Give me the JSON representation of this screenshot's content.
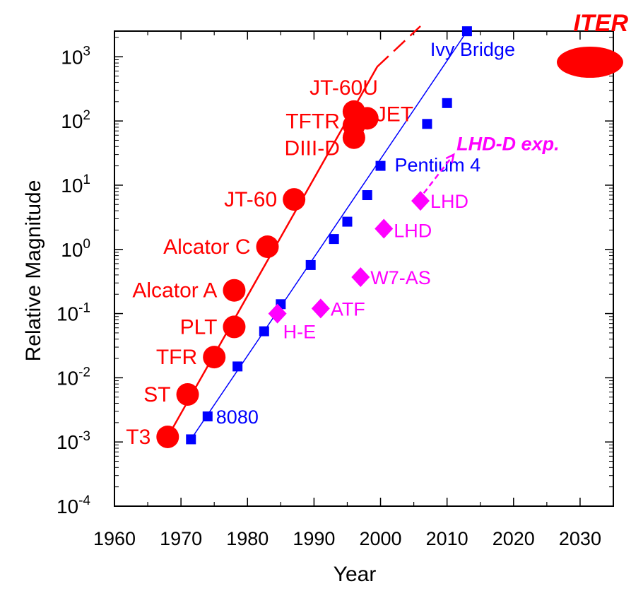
{
  "chart_data": {
    "type": "scatter",
    "xlabel": "Year",
    "ylabel": "Relative Magnitude",
    "xlim": [
      1960,
      2035
    ],
    "ylim_log10": [
      -4,
      3.4
    ],
    "y_scale": "log",
    "x_ticks": [
      "1960",
      "1970",
      "1980",
      "1990",
      "2000",
      "2010",
      "2020",
      "2030"
    ],
    "y_ticks": [
      {
        "base": "10",
        "exp": "3",
        "value": 3
      },
      {
        "base": "10",
        "exp": "2",
        "value": 2
      },
      {
        "base": "10",
        "exp": "1",
        "value": 1
      },
      {
        "base": "10",
        "exp": "0",
        "value": 0
      },
      {
        "base": "10",
        "exp": "-1",
        "value": -1
      },
      {
        "base": "10",
        "exp": "-2",
        "value": -2
      },
      {
        "base": "10",
        "exp": "-3",
        "value": -3
      },
      {
        "base": "10",
        "exp": "-4",
        "value": -4
      }
    ],
    "colors": {
      "tokamak": "#ff0000",
      "cpu": "#0000ff",
      "helical": "#ff00ff",
      "axes": "#000000"
    },
    "series": [
      {
        "marker": "circle",
        "color": "#ff0000",
        "points": [
          {
            "x": 1968,
            "y": 0.0012,
            "label": "T3"
          },
          {
            "x": 1971,
            "y": 0.0055,
            "label": "ST"
          },
          {
            "x": 1975,
            "y": 0.021,
            "label": "TFR"
          },
          {
            "x": 1978,
            "y": 0.062,
            "label": "PLT"
          },
          {
            "x": 1978,
            "y": 0.23,
            "label": "Alcator A"
          },
          {
            "x": 1983,
            "y": 1.1,
            "label": "Alcator C"
          },
          {
            "x": 1987,
            "y": 6.0,
            "label": "JT-60"
          },
          {
            "x": 1996,
            "y": 55,
            "label": "DIII-D"
          },
          {
            "x": 1996,
            "y": 85,
            "label": "TFTR"
          },
          {
            "x": 1996,
            "y": 140,
            "label": "JT-60U"
          },
          {
            "x": 1998,
            "y": 110,
            "label": "JET"
          }
        ],
        "trend": {
          "from": [
            1968,
            0.0012
          ],
          "to": [
            1999.5,
            700
          ]
        },
        "trend_dashed": {
          "from": [
            1999.5,
            700
          ],
          "to": [
            2006,
            3000
          ]
        }
      },
      {
        "marker": "square",
        "color": "#0000ff",
        "points": [
          {
            "x": 1971.5,
            "y": 0.0011
          },
          {
            "x": 1974,
            "y": 0.0025,
            "label": "8080"
          },
          {
            "x": 1978.5,
            "y": 0.015
          },
          {
            "x": 1982.5,
            "y": 0.053
          },
          {
            "x": 1985,
            "y": 0.14
          },
          {
            "x": 1989.5,
            "y": 0.57
          },
          {
            "x": 1993,
            "y": 1.45
          },
          {
            "x": 1995,
            "y": 2.7
          },
          {
            "x": 1998,
            "y": 7.0
          },
          {
            "x": 2000,
            "y": 20,
            "label": "Pentium 4"
          },
          {
            "x": 2007,
            "y": 90
          },
          {
            "x": 2010,
            "y": 190
          },
          {
            "x": 2013,
            "y": 2500,
            "label": "Ivy Bridge"
          }
        ],
        "trend": {
          "from": [
            1971.5,
            0.0011
          ],
          "to": [
            2013,
            2500
          ]
        }
      },
      {
        "marker": "diamond",
        "color": "#ff00ff",
        "points": [
          {
            "x": 1984.5,
            "y": 0.1,
            "label": "H-E"
          },
          {
            "x": 1991,
            "y": 0.12,
            "label": "ATF"
          },
          {
            "x": 1997,
            "y": 0.37,
            "label": "W7-AS"
          },
          {
            "x": 2000.5,
            "y": 2.1,
            "label": "LHD"
          },
          {
            "x": 2006,
            "y": 5.7,
            "label": "LHD"
          }
        ],
        "arrow": {
          "from": [
            2006.5,
            7.5
          ],
          "to": [
            2011,
            30
          ]
        },
        "arrow_label": "LHD-D exp."
      }
    ],
    "callout": {
      "label": "ITER"
    }
  }
}
